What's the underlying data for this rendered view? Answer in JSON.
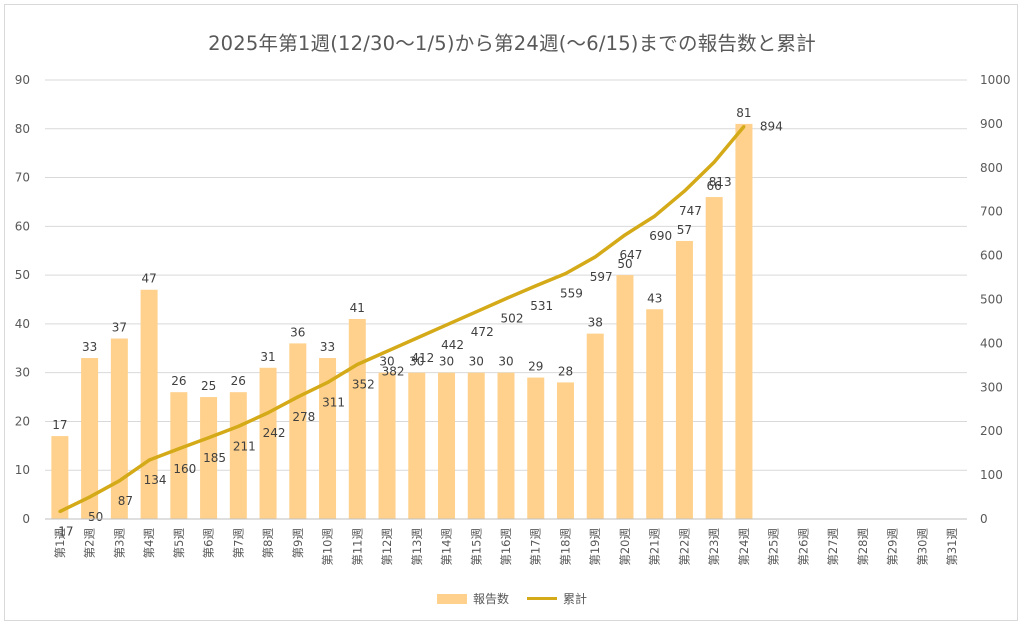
{
  "chart_data": {
    "type": "bar+line",
    "title": "2025年第1週(12/30～1/5)から第24週(～6/15)までの報告数と累計",
    "categories": [
      "第1週",
      "第2週",
      "第3週",
      "第4週",
      "第5週",
      "第6週",
      "第7週",
      "第8週",
      "第9週",
      "第10週",
      "第11週",
      "第12週",
      "第13週",
      "第14週",
      "第15週",
      "第16週",
      "第17週",
      "第18週",
      "第19週",
      "第20週",
      "第21週",
      "第22週",
      "第23週",
      "第24週",
      "第25週",
      "第26週",
      "第27週",
      "第28週",
      "第29週",
      "第30週",
      "第31週"
    ],
    "series": [
      {
        "name": "報告数",
        "type": "bar",
        "axis": "left",
        "color": "#FFD18C",
        "values": [
          17,
          33,
          37,
          47,
          26,
          25,
          26,
          31,
          36,
          33,
          41,
          30,
          30,
          30,
          30,
          30,
          29,
          28,
          38,
          50,
          43,
          57,
          66,
          81,
          null,
          null,
          null,
          null,
          null,
          null,
          null
        ]
      },
      {
        "name": "累計",
        "type": "line",
        "axis": "right",
        "color": "#D4AA18",
        "values": [
          17,
          50,
          87,
          134,
          160,
          185,
          211,
          242,
          278,
          311,
          352,
          382,
          412,
          442,
          472,
          502,
          531,
          559,
          597,
          647,
          690,
          747,
          813,
          894,
          null,
          null,
          null,
          null,
          null,
          null,
          null
        ]
      }
    ],
    "left_axis": {
      "min": 0,
      "max": 90,
      "step": 10
    },
    "right_axis": {
      "min": 0,
      "max": 1000,
      "step": 100
    },
    "grid": true,
    "legend_position": "bottom"
  }
}
